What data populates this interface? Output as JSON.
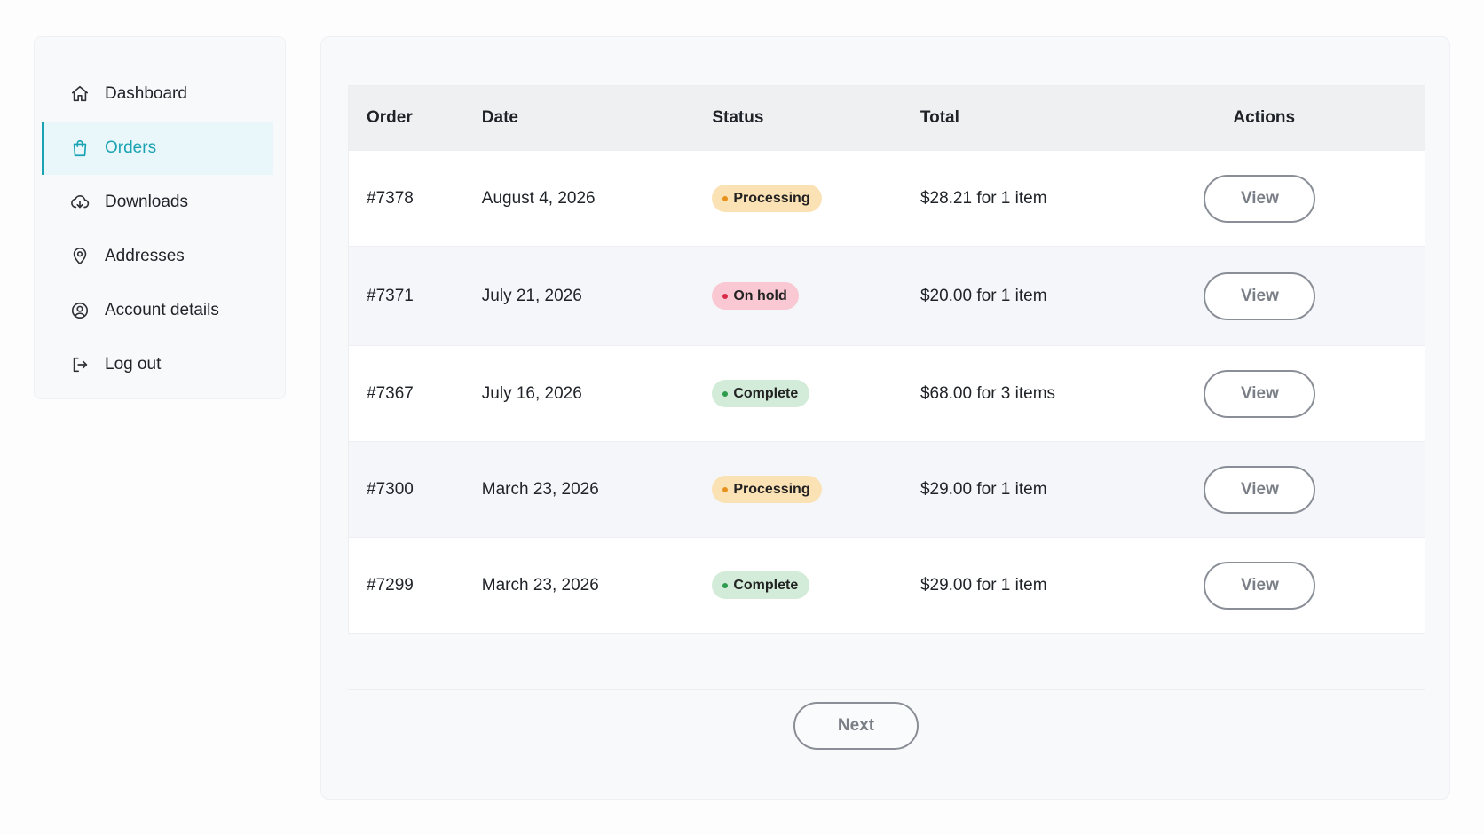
{
  "sidebar": {
    "items": [
      {
        "label": "Dashboard",
        "icon": "home-icon"
      },
      {
        "label": "Orders",
        "icon": "shopping-bag-icon",
        "active": true
      },
      {
        "label": "Downloads",
        "icon": "cloud-download-icon"
      },
      {
        "label": "Addresses",
        "icon": "map-pin-icon"
      },
      {
        "label": "Account details",
        "icon": "user-circle-icon"
      },
      {
        "label": "Log out",
        "icon": "logout-icon"
      }
    ]
  },
  "orders": {
    "headers": {
      "order": "Order",
      "date": "Date",
      "status": "Status",
      "total": "Total",
      "actions": "Actions"
    },
    "rows": [
      {
        "order": "#7378",
        "date": "August 4, 2026",
        "status": "Processing",
        "total": "$28.21 for 1 item",
        "action": "View"
      },
      {
        "order": "#7371",
        "date": "July 21, 2026",
        "status": "On hold",
        "total": "$20.00 for 1 item",
        "action": "View"
      },
      {
        "order": "#7367",
        "date": "July 16, 2026",
        "status": "Complete",
        "total": "$68.00 for 3 items",
        "action": "View"
      },
      {
        "order": "#7300",
        "date": "March 23, 2026",
        "status": "Processing",
        "total": "$29.00 for 1 item",
        "action": "View"
      },
      {
        "order": "#7299",
        "date": "March 23, 2026",
        "status": "Complete",
        "total": "$29.00 for 1 item",
        "action": "View"
      }
    ],
    "next_label": "Next"
  },
  "colors": {
    "accent": "#1aa3b3",
    "processing": "#fbe2b5",
    "on_hold": "#f9c8d3",
    "complete": "#d3ecd9"
  }
}
